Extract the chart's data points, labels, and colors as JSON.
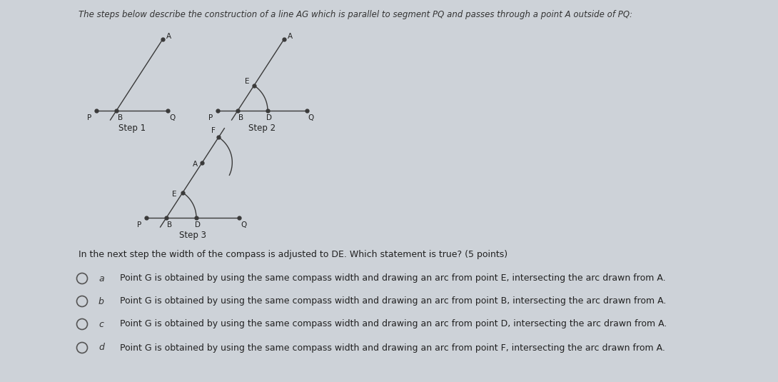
{
  "bg_color": "#cdd2d8",
  "title": "The steps below describe the construction of a line AG which is parallel to segment PQ and passes through a point A outside of PQ:",
  "title_fontsize": 8.5,
  "question": "In the next step the width of the compass is adjusted to DE. Which statement is true? (5 points)",
  "question_fontsize": 9.0,
  "options": [
    {
      "label": "a",
      "text": "Point G is obtained by using the same compass width and drawing an arc from point E, intersecting the arc drawn from A."
    },
    {
      "label": "b",
      "text": "Point G is obtained by using the same compass width and drawing an arc from point B, intersecting the arc drawn from A."
    },
    {
      "label": "c",
      "text": "Point G is obtained by using the same compass width and drawing an arc from point D, intersecting the arc drawn from A."
    },
    {
      "label": "d",
      "text": "Point G is obtained by using the same compass width and drawing an arc from point F, intersecting the arc drawn from A."
    }
  ],
  "option_fontsize": 9.0,
  "line_color": "#3a3a3a",
  "dot_color": "#3a3a3a",
  "label_fontsize": 7.5,
  "step_label_fontsize": 8.5
}
